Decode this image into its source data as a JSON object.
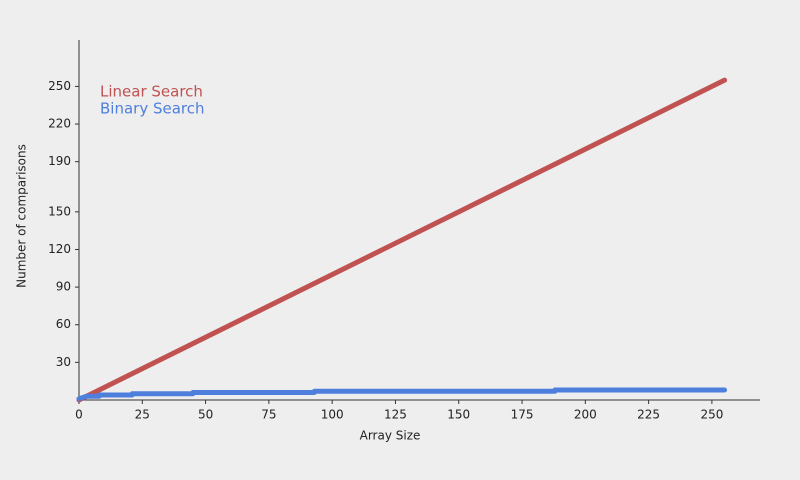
{
  "chart_data": {
    "type": "line",
    "xlabel": "Array Size",
    "ylabel": "Number of comparisons",
    "series": [
      {
        "name": "Linear Search",
        "color": "#c05252",
        "x": [
          0,
          255
        ],
        "values": [
          0,
          255
        ]
      },
      {
        "name": "Binary Search",
        "color": "#4f7fdc",
        "x": [
          0,
          3,
          8,
          8,
          21,
          21,
          45,
          45,
          93,
          93,
          188,
          188,
          255
        ],
        "values": [
          1,
          3,
          3,
          4,
          4,
          5,
          5,
          6,
          6,
          7,
          7,
          8,
          8
        ]
      }
    ],
    "xlim": [
      0,
      269
    ],
    "xticks": [
      0,
      25,
      50,
      75,
      100,
      125,
      150,
      175,
      200,
      225,
      250
    ],
    "ylim": [
      0,
      287
    ],
    "yticks": [
      30,
      60,
      90,
      120,
      150,
      190,
      220,
      250
    ],
    "grid": false,
    "legend": "upper left"
  }
}
